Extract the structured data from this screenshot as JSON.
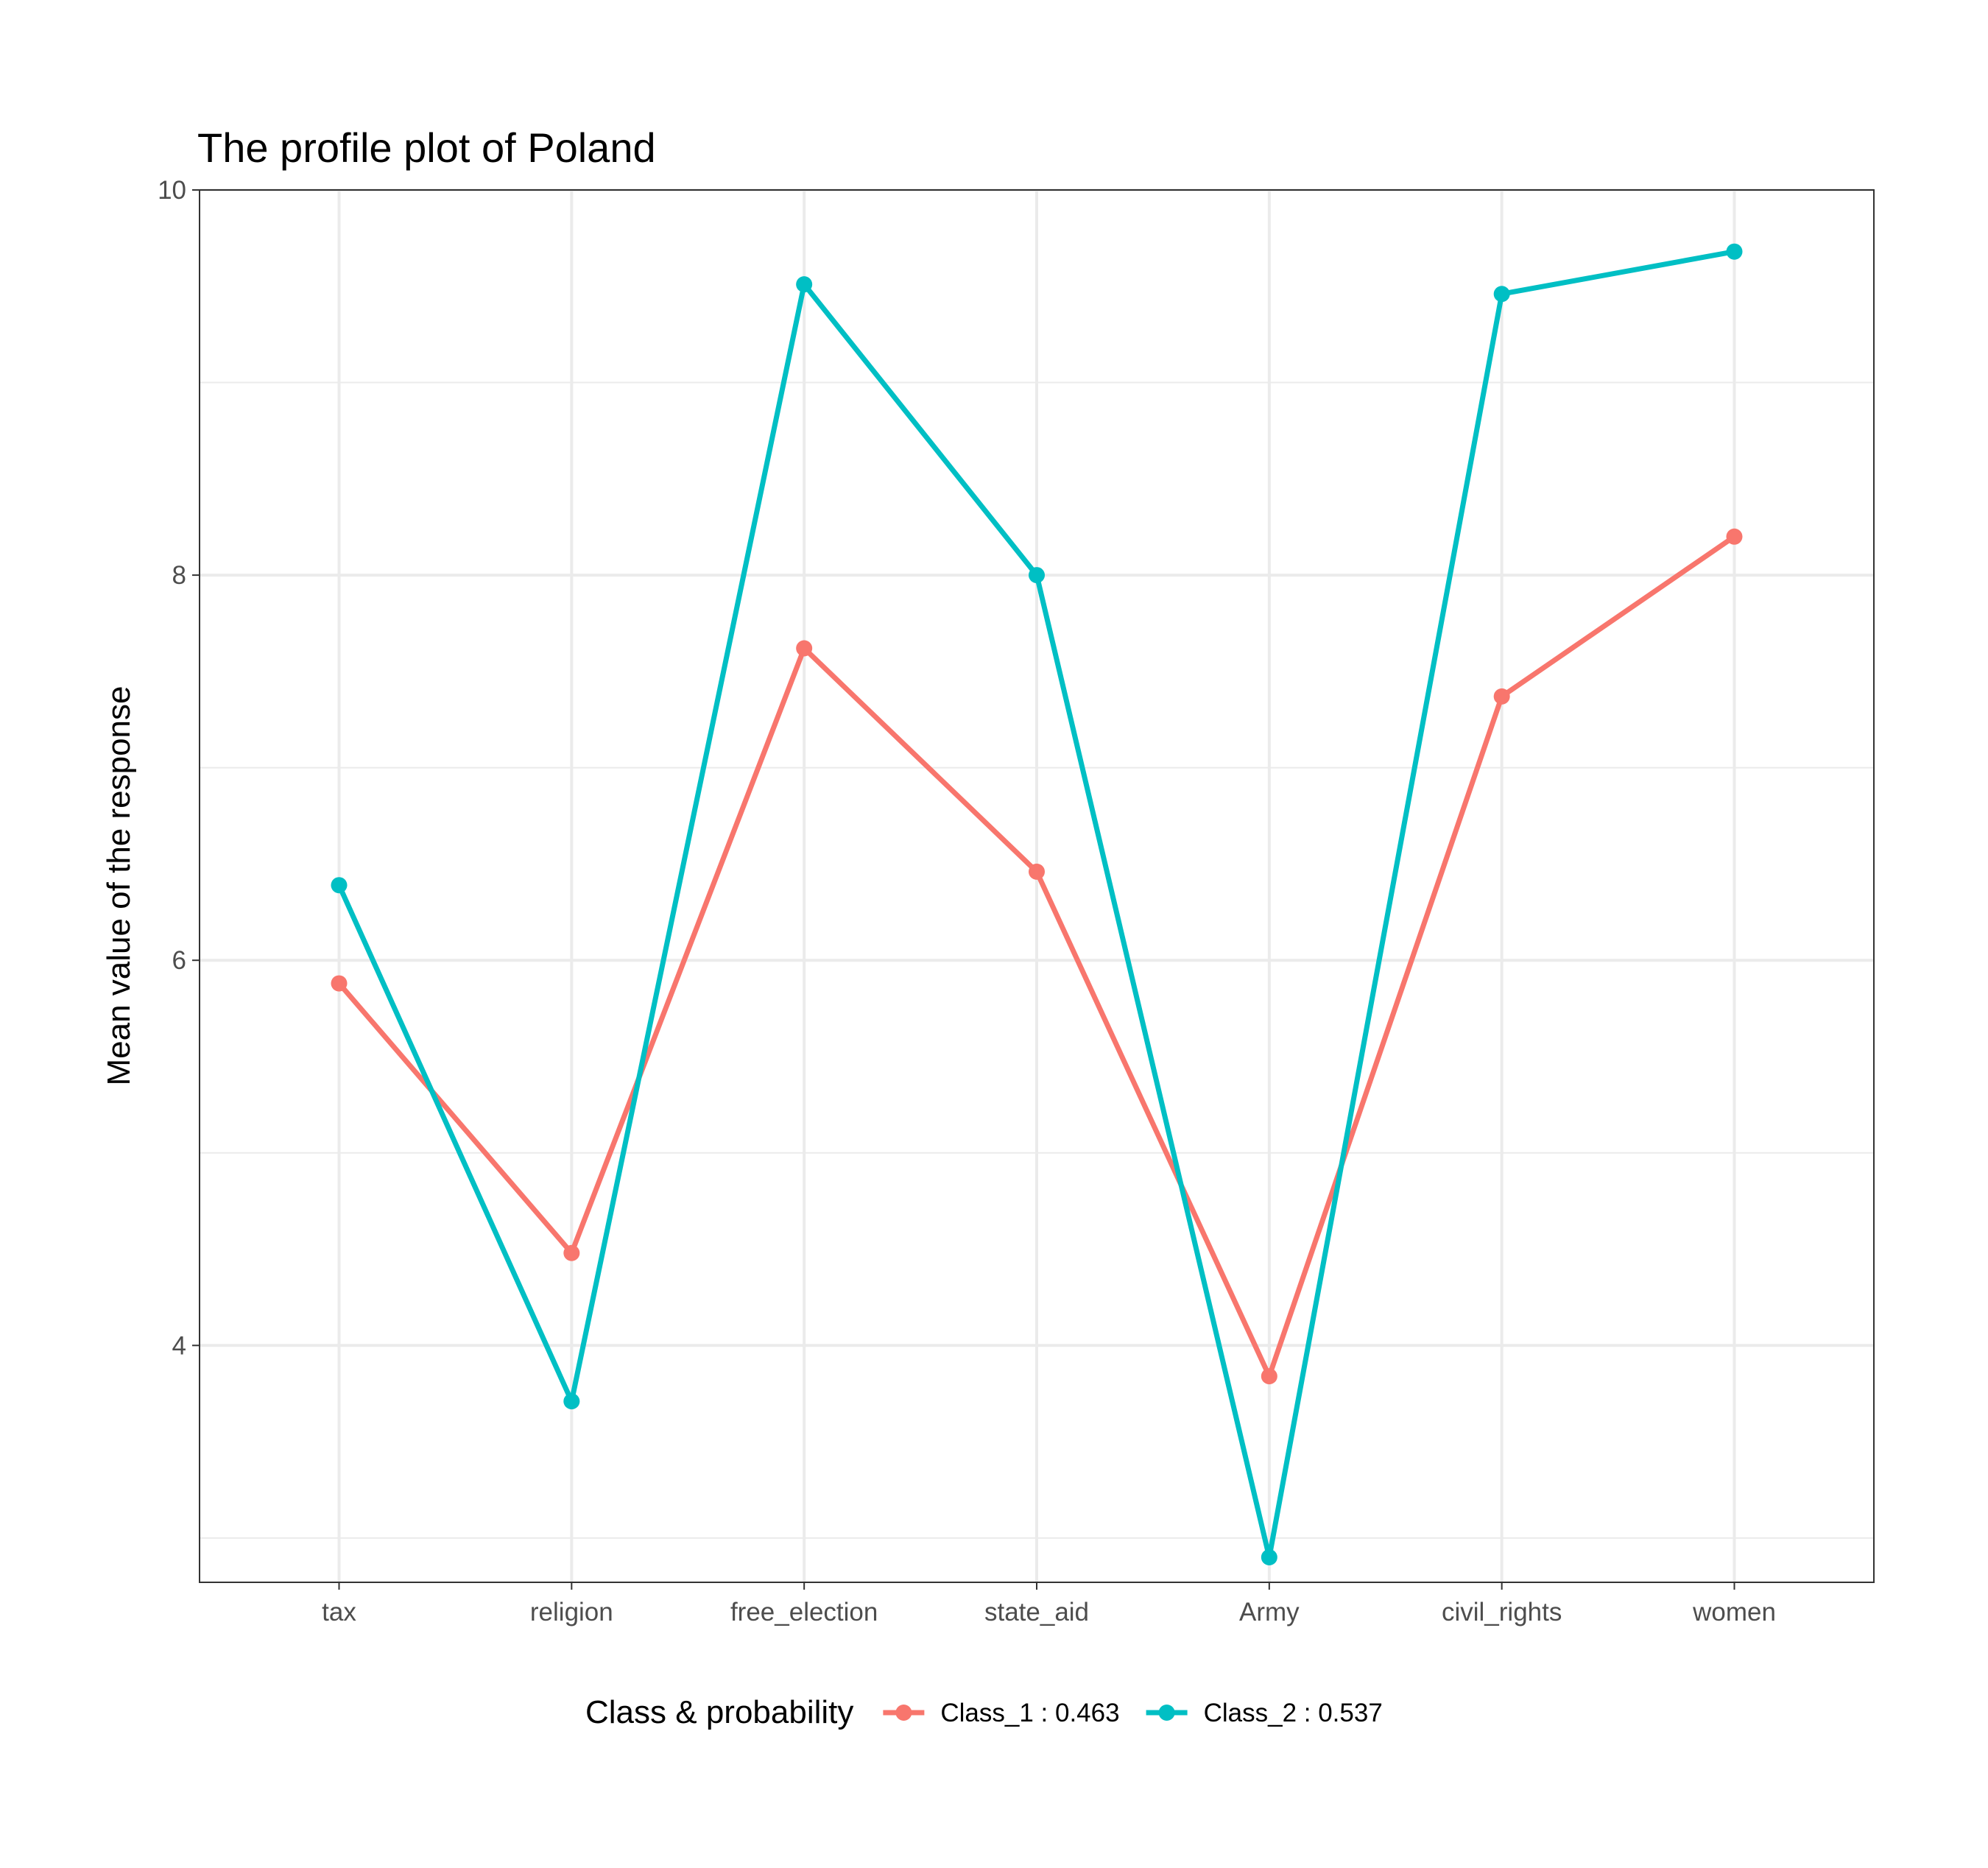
{
  "chart_data": {
    "type": "line",
    "title": "The profile plot of Poland",
    "xlabel": "",
    "ylabel": "Mean value of the response",
    "categories": [
      "tax",
      "religion",
      "free_election",
      "state_aid",
      "Army",
      "civil_rights",
      "women"
    ],
    "ylim": [
      2.77,
      10
    ],
    "yticks": [
      4,
      6,
      8,
      10
    ],
    "grid": true,
    "legend_title": "Class & probability",
    "legend_position": "bottom",
    "series": [
      {
        "name": "Class_1 : 0.463",
        "color": "#F8766D",
        "values": [
          5.88,
          4.48,
          7.62,
          6.46,
          3.84,
          7.37,
          8.2
        ]
      },
      {
        "name": "Class_2 : 0.537",
        "color": "#00BFC4",
        "values": [
          6.39,
          3.71,
          9.51,
          8.0,
          2.9,
          9.46,
          9.68
        ]
      }
    ]
  }
}
